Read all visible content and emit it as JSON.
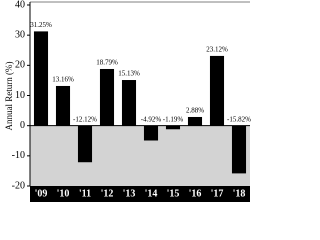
{
  "chart_data": {
    "type": "bar",
    "y_label": "Annual Return (%)",
    "categories": [
      "'09",
      "'10",
      "'11",
      "'12",
      "'13",
      "'14",
      "'15",
      "'16",
      "'17",
      "'18"
    ],
    "values": [
      31.25,
      13.16,
      -12.12,
      18.79,
      15.13,
      -4.92,
      -1.19,
      2.88,
      23.12,
      -15.82
    ],
    "value_labels": [
      "31.25%",
      "13.16%",
      "-12.12%",
      "18.79%",
      "15.13%",
      "-4.92%",
      "-1.19%",
      "2.88%",
      "23.12%",
      "-15.82%"
    ],
    "color": "#000000",
    "ylim": [
      -20,
      40
    ],
    "yticks": [
      -20,
      -10,
      0,
      10,
      20,
      30,
      40
    ],
    "grid": false
  }
}
